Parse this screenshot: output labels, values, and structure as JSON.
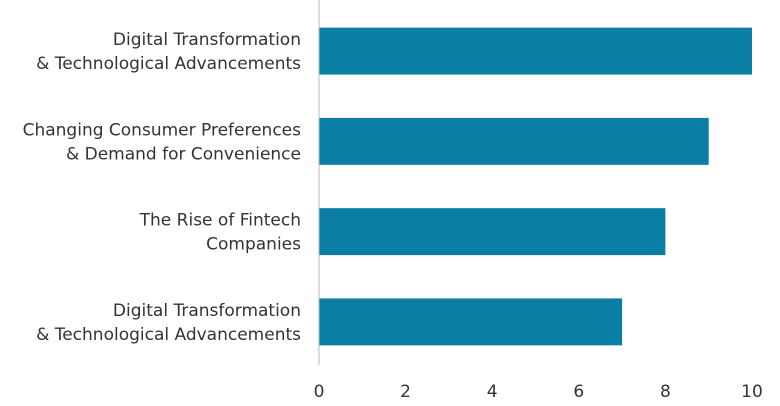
{
  "chart_data": {
    "type": "bar",
    "orientation": "horizontal",
    "title": "",
    "xlabel": "",
    "ylabel": "",
    "categories": [
      [
        "Digital Transformation",
        "& Technological Advancements"
      ],
      [
        "Changing Consumer Preferences",
        "& Demand for Convenience"
      ],
      [
        "The Rise of Fintech",
        "Companies"
      ],
      [
        "Digital Transformation",
        "& Technological Advancements"
      ]
    ],
    "values": [
      10,
      9,
      8,
      7
    ],
    "xlim": [
      0,
      10
    ],
    "xticks": [
      "0",
      "2",
      "4",
      "6",
      "8",
      "10"
    ],
    "grid": false,
    "legend": "none",
    "bar_color": "#0a7ea4",
    "axis_color": "#bbbbbb"
  }
}
